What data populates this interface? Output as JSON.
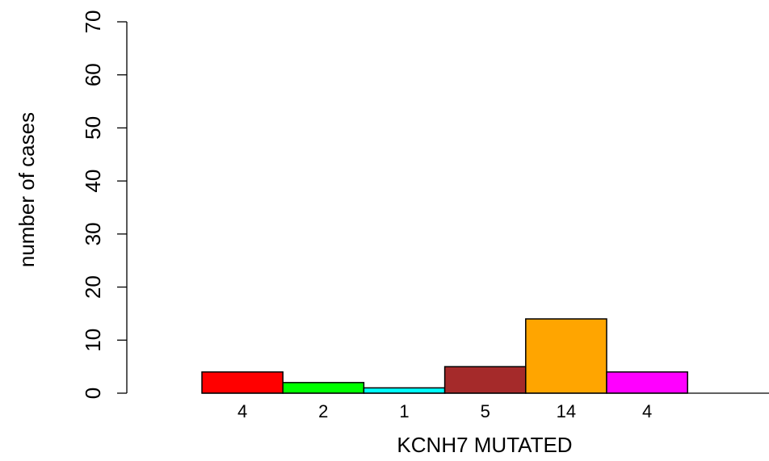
{
  "chart_data": {
    "type": "bar",
    "title": "",
    "xlabel": "KCNH7 MUTATED",
    "ylabel": "number of cases",
    "categories": [
      "4",
      "2",
      "1",
      "5",
      "14",
      "4"
    ],
    "values": [
      4,
      2,
      1,
      5,
      14,
      4
    ],
    "colors": [
      "#ff0000",
      "#00ff00",
      "#00ffff",
      "#a52a2a",
      "#ffa500",
      "#ff00ff"
    ],
    "ylim": [
      0,
      70
    ],
    "yticks": [
      0,
      10,
      20,
      30,
      40,
      50,
      60,
      70
    ],
    "grid": false,
    "legend": "none"
  }
}
